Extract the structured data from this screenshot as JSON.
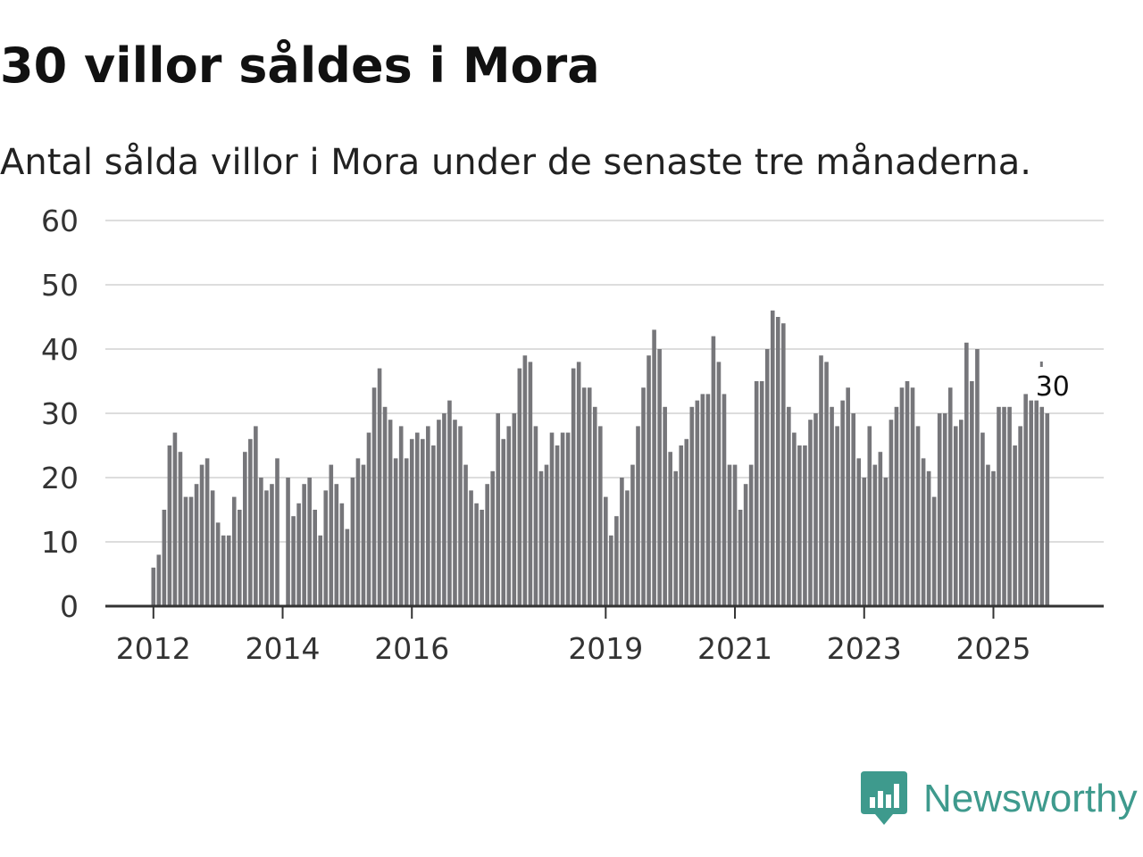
{
  "title": "30 villor såldes i Mora",
  "subtitle": "Antal sålda villor i Mora under de senaste tre månaderna.",
  "brand": {
    "name": "Newsworthy",
    "color": "#3e9a8d",
    "icon": "newsworthy-logo-icon"
  },
  "colors": {
    "bar": "#76767a",
    "highlight": "#2a9a8d",
    "grid": "#dddddd",
    "axis": "#333333"
  },
  "chart_data": {
    "type": "bar",
    "title": "30 villor såldes i Mora",
    "xlabel": "",
    "ylabel": "",
    "ylim": [
      0,
      60
    ],
    "y_ticks": [
      0,
      10,
      20,
      30,
      40,
      50,
      60
    ],
    "x_tick_labels": [
      {
        "label": "2012",
        "index": 0
      },
      {
        "label": "2014",
        "index": 24
      },
      {
        "label": "2016",
        "index": 48
      },
      {
        "label": "2019",
        "index": 84
      },
      {
        "label": "2021",
        "index": 108
      },
      {
        "label": "2023",
        "index": 132
      },
      {
        "label": "2025",
        "index": 156
      }
    ],
    "start": "2012-01",
    "series": [
      {
        "name": "Antal sålda villor",
        "values": [
          6,
          8,
          15,
          25,
          27,
          24,
          17,
          17,
          19,
          22,
          23,
          18,
          13,
          11,
          11,
          17,
          15,
          24,
          26,
          28,
          20,
          18,
          19,
          23,
          null,
          20,
          14,
          16,
          19,
          20,
          15,
          11,
          18,
          22,
          19,
          16,
          12,
          20,
          23,
          22,
          27,
          34,
          37,
          31,
          29,
          23,
          28,
          23,
          26,
          27,
          26,
          28,
          25,
          29,
          30,
          32,
          29,
          28,
          22,
          18,
          16,
          15,
          19,
          21,
          30,
          26,
          28,
          30,
          37,
          39,
          38,
          28,
          21,
          22,
          27,
          25,
          27,
          27,
          37,
          38,
          34,
          34,
          31,
          28,
          17,
          11,
          14,
          20,
          18,
          22,
          28,
          34,
          39,
          43,
          40,
          31,
          24,
          21,
          25,
          26,
          31,
          32,
          33,
          33,
          42,
          38,
          33,
          22,
          22,
          15,
          19,
          22,
          35,
          35,
          40,
          46,
          45,
          44,
          31,
          27,
          25,
          25,
          29,
          30,
          39,
          38,
          31,
          28,
          32,
          34,
          30,
          23,
          20,
          28,
          22,
          24,
          20,
          29,
          31,
          34,
          35,
          34,
          28,
          23,
          21,
          17,
          30,
          30,
          34,
          28,
          29,
          41,
          35,
          40,
          27,
          22,
          21,
          31,
          31,
          31,
          25,
          28,
          33,
          32,
          32,
          31,
          30
        ]
      }
    ],
    "highlight": {
      "index": 167,
      "value": 30,
      "label": "30"
    }
  }
}
